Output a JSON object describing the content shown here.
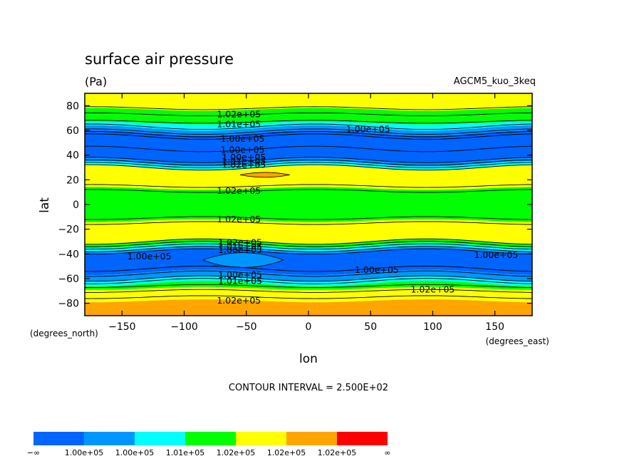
{
  "header": {
    "title": "surface air pressure",
    "units": "(Pa)",
    "model": "AGCM5_kuo_3keq"
  },
  "chart_data": {
    "type": "contour",
    "xlabel": "lon",
    "ylabel": "lat",
    "x_units": "(degrees_east)",
    "y_units": "(degrees_north)",
    "xlim": [
      -180,
      180
    ],
    "ylim": [
      -90,
      90
    ],
    "x_ticks": [
      -150,
      -100,
      -50,
      0,
      50,
      100,
      150
    ],
    "x_tick_labels": [
      "−150",
      "−100",
      "−50",
      "0",
      "50",
      "100",
      "150"
    ],
    "y_ticks": [
      80,
      60,
      40,
      20,
      0,
      -20,
      -40,
      -60,
      -80
    ],
    "y_tick_labels": [
      "80",
      "60",
      "40",
      "20",
      "0",
      "−20",
      "−40",
      "−60",
      "−80"
    ],
    "contour_interval": "CONTOUR INTERVAL = 2.500E+02",
    "levels": [
      {
        "name": "L1",
        "color": "#0064ff"
      },
      {
        "name": "L2",
        "color": "#0096ff"
      },
      {
        "name": "L3",
        "color": "#00ffff"
      },
      {
        "name": "L4",
        "color": "#00ff00"
      },
      {
        "name": "L5",
        "color": "#ffff00"
      },
      {
        "name": "L6",
        "color": "#ffa500"
      },
      {
        "name": "L7",
        "color": "#ff0000"
      }
    ],
    "bands": [
      {
        "lat_max": 90,
        "lat_min": 77,
        "level": 4
      },
      {
        "lat_max": 77,
        "lat_min": 72,
        "level": 3
      },
      {
        "lat_max": 72,
        "lat_min": 66,
        "level": 3
      },
      {
        "lat_max": 66,
        "lat_min": 62,
        "level": 2
      },
      {
        "lat_max": 62,
        "lat_min": 58,
        "level": 1
      },
      {
        "lat_max": 58,
        "lat_min": 36,
        "level": 0
      },
      {
        "lat_max": 36,
        "lat_min": 33,
        "level": 1
      },
      {
        "lat_max": 33,
        "lat_min": 30,
        "level": 2
      },
      {
        "lat_max": 30,
        "lat_min": 13,
        "level": 4
      },
      {
        "lat_max": 13,
        "lat_min": -13,
        "level": 3
      },
      {
        "lat_max": -13,
        "lat_min": -30,
        "level": 4
      },
      {
        "lat_max": -30,
        "lat_min": -33,
        "level": 3
      },
      {
        "lat_max": -33,
        "lat_min": -36,
        "level": 2
      },
      {
        "lat_max": -36,
        "lat_min": -38,
        "level": 1
      },
      {
        "lat_max": -38,
        "lat_min": -55,
        "level": 0
      },
      {
        "lat_max": -55,
        "lat_min": -60,
        "level": 1
      },
      {
        "lat_max": -60,
        "lat_min": -64,
        "level": 2
      },
      {
        "lat_max": -64,
        "lat_min": -68,
        "level": 3
      },
      {
        "lat_max": -68,
        "lat_min": -78,
        "level": 4
      },
      {
        "lat_max": -78,
        "lat_min": -90,
        "level": 5
      }
    ],
    "features": [
      {
        "name": "high-cell-25n",
        "lon_min": -55,
        "lon_max": -15,
        "lat_center": 24,
        "half_height": 2,
        "level": 5
      },
      {
        "name": "mid-gap-40s",
        "lon_min": -85,
        "lon_max": -20,
        "lat_center": -45,
        "half_height": 6,
        "level": 1
      }
    ],
    "contour_lines": [
      78,
      73,
      67,
      63,
      59,
      57,
      55,
      45,
      36,
      34,
      32,
      30,
      15,
      11,
      -11,
      -15,
      -30,
      -32,
      -34,
      -36,
      -38,
      -52,
      -56,
      -60,
      -62,
      -66,
      -70,
      -75
    ],
    "labels": [
      {
        "text": "1.02e+05",
        "lon": -56,
        "lat": 73
      },
      {
        "text": "1.01e+05",
        "lon": -56,
        "lat": 65
      },
      {
        "text": "1.00e+05",
        "lon": 48,
        "lat": 61
      },
      {
        "text": "1.00e+05",
        "lon": -53,
        "lat": 53
      },
      {
        "text": "1.00e+05",
        "lon": -53,
        "lat": 44
      },
      {
        "text": "1.00e+05",
        "lon": -52,
        "lat": 38
      },
      {
        "text": "1.01e+05",
        "lon": -52,
        "lat": 35
      },
      {
        "text": "1.02e+05",
        "lon": -52,
        "lat": 32
      },
      {
        "text": "1.02e+05",
        "lon": -56,
        "lat": 11
      },
      {
        "text": "1.02e+05",
        "lon": -56,
        "lat": -12
      },
      {
        "text": "1.02e+05",
        "lon": -55,
        "lat": -31
      },
      {
        "text": "1.01e+05",
        "lon": -55,
        "lat": -34
      },
      {
        "text": "1.00e+05",
        "lon": -55,
        "lat": -37
      },
      {
        "text": "1.00e+05",
        "lon": -128,
        "lat": -42
      },
      {
        "text": "1.00e+05",
        "lon": 151,
        "lat": -41
      },
      {
        "text": "1.00e+05",
        "lon": 55,
        "lat": -53
      },
      {
        "text": "1.00e+05",
        "lon": -55,
        "lat": -57
      },
      {
        "text": "1.01e+05",
        "lon": -55,
        "lat": -62
      },
      {
        "text": "1.02e+05",
        "lon": 100,
        "lat": -69
      },
      {
        "text": "1.02e+05",
        "lon": -56,
        "lat": -78
      }
    ],
    "colorbar_labels": [
      "−∞",
      "1.00e+05",
      "1.00e+05",
      "1.01e+05",
      "1.02e+05",
      "1.02e+05",
      "1.02e+05",
      "∞"
    ]
  }
}
